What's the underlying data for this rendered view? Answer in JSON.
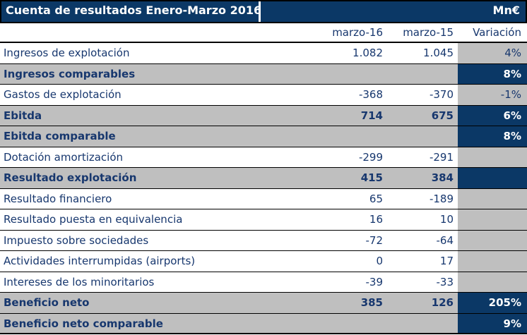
{
  "header": {
    "title": "Cuenta de resultados Enero-Marzo 2016",
    "unit": "Mn€"
  },
  "columns": {
    "label": "",
    "col1": "marzo-16",
    "col2": "marzo-15",
    "col3": "Variación"
  },
  "rows": [
    {
      "label": "Ingresos de explotación",
      "m16": "1.082",
      "m15": "1.045",
      "var": "4%",
      "highlight": false
    },
    {
      "label": "Ingresos comparables",
      "m16": "",
      "m15": "",
      "var": "8%",
      "highlight": true
    },
    {
      "label": "Gastos de explotación",
      "m16": "-368",
      "m15": "-370",
      "var": "-1%",
      "highlight": false
    },
    {
      "label": "Ebitda",
      "m16": "714",
      "m15": "675",
      "var": "6%",
      "highlight": true
    },
    {
      "label": "Ebitda comparable",
      "m16": "",
      "m15": "",
      "var": "8%",
      "highlight": true
    },
    {
      "label": "Dotación amortización",
      "m16": "-299",
      "m15": "-291",
      "var": "",
      "highlight": false
    },
    {
      "label": "Resultado explotación",
      "m16": "415",
      "m15": "384",
      "var": "",
      "highlight": true
    },
    {
      "label": "Resultado financiero",
      "m16": "65",
      "m15": "-189",
      "var": "",
      "highlight": false
    },
    {
      "label": "Resultado puesta en equivalencia",
      "m16": "16",
      "m15": "10",
      "var": "",
      "highlight": false
    },
    {
      "label": "Impuesto sobre sociedades",
      "m16": "-72",
      "m15": "-64",
      "var": "",
      "highlight": false
    },
    {
      "label": "Actividades interrumpidas (airports)",
      "m16": "0",
      "m15": "17",
      "var": "",
      "highlight": false
    },
    {
      "label": "Intereses de los minoritarios",
      "m16": "-39",
      "m15": "-33",
      "var": "",
      "highlight": false
    },
    {
      "label": "Beneficio neto",
      "m16": "385",
      "m15": "126",
      "var": "205%",
      "highlight": true
    },
    {
      "label": "Beneficio neto comparable",
      "m16": "",
      "m15": "",
      "var": "9%",
      "highlight": true
    }
  ],
  "colors": {
    "navy": "#0b3866",
    "gray": "#bfbfbf",
    "text_navy": "#17376e",
    "white_text": "#ffffff",
    "divider": "#000000"
  }
}
